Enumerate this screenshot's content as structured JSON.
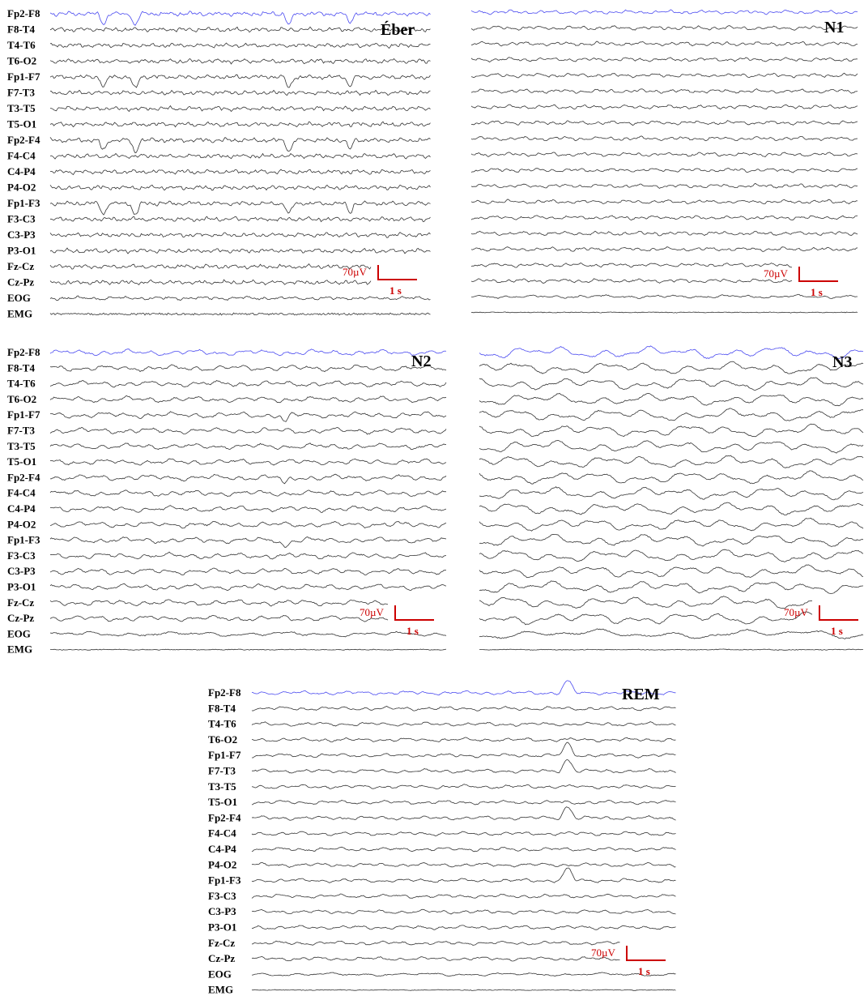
{
  "channels": [
    "Fp2-F8",
    "F8-T4",
    "T4-T6",
    "T6-O2",
    "Fp1-F7",
    "F7-T3",
    "T3-T5",
    "T5-O1",
    "Fp2-F4",
    "F4-C4",
    "C4-P4",
    "P4-O2",
    "Fp1-F3",
    "F3-C3",
    "C3-P3",
    "P3-O1",
    "Fz-Cz",
    "Cz-Pz",
    "EOG",
    "EMG"
  ],
  "colors": {
    "highlight": "#4a4af0",
    "trace": "#333333",
    "scale": "#cc0000"
  },
  "scale_bar": {
    "amplitude_label": "70µV",
    "time_label": "1 s"
  },
  "panels": [
    {
      "id": "eber",
      "stage": "Éber",
      "show_labels": true
    },
    {
      "id": "n1",
      "stage": "N1",
      "show_labels": false
    },
    {
      "id": "n2",
      "stage": "N2",
      "show_labels": true
    },
    {
      "id": "n3",
      "stage": "N3",
      "show_labels": false
    },
    {
      "id": "rem",
      "stage": "REM",
      "show_labels": true
    }
  ],
  "chart_data": {
    "type": "line",
    "description_free": true,
    "scale_amplitude_uV": 70,
    "scale_time_s": 1
  }
}
